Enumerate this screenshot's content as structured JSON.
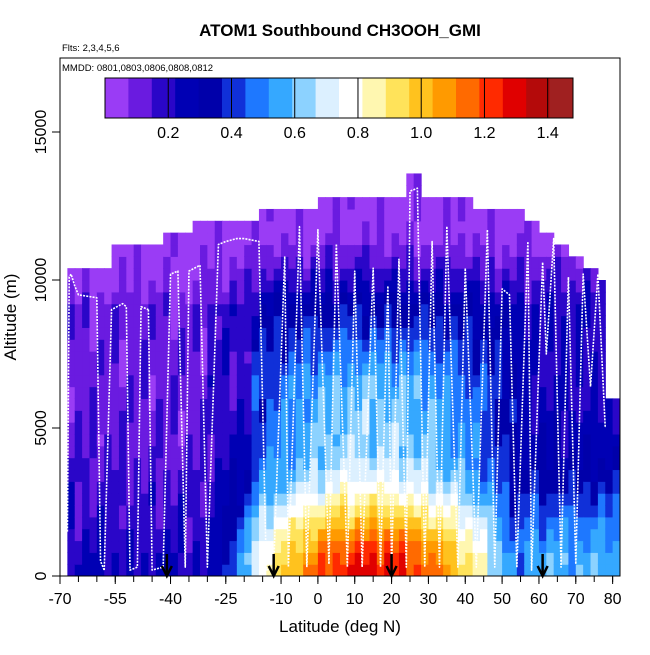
{
  "chart_data": {
    "type": "heatmap",
    "title": "ATOM1 Southbound CH3OOH_GMI",
    "subtitle_flights": "Flts: 2,3,4,5,6",
    "subtitle_dates": "MMDD: 0801,0803,0806,0808,0812",
    "xlabel": "Latitude (deg N)",
    "ylabel": "Altitude (m)",
    "xlim": [
      -70,
      82
    ],
    "ylim": [
      0,
      17500
    ],
    "x_ticks": [
      -70,
      -55,
      -40,
      -25,
      -10,
      0,
      10,
      20,
      30,
      40,
      50,
      60,
      70,
      80
    ],
    "x_tick_labels": [
      "-70",
      "-55",
      "-40",
      "-25",
      "-10",
      "0",
      "10",
      "20",
      "30",
      "40",
      "50",
      "60",
      "70",
      "80"
    ],
    "y_ticks": [
      0,
      5000,
      10000,
      15000
    ],
    "y_tick_labels": [
      "0",
      "5000",
      "10000",
      "15000"
    ],
    "colorbar": {
      "range": [
        0.0,
        1.48
      ],
      "ticks": [
        0.2,
        0.4,
        0.6,
        0.8,
        1.0,
        1.2,
        1.4
      ],
      "tick_labels": [
        "0.2",
        "0.4",
        "0.6",
        "0.8",
        "1.0",
        "1.2",
        "1.4"
      ],
      "colors": [
        "#9A3CF5",
        "#6A1BE0",
        "#2A06C8",
        "#0000B4",
        "#0000AA",
        "#1030D8",
        "#1E78FF",
        "#35A8FF",
        "#8CD2FF",
        "#DCF0FF",
        "#FFFFFF",
        "#FFF7B0",
        "#FFE35A",
        "#FFC21E",
        "#FF9A00",
        "#FF6A00",
        "#FF2A00",
        "#E00000",
        "#B40A0A",
        "#A02020"
      ]
    },
    "arrows_lat": [
      -41,
      -12,
      20,
      61
    ],
    "ceiling_profile": [
      {
        "lat": -67,
        "top": 10400
      },
      {
        "lat": -60,
        "top": 10400
      },
      {
        "lat": -56,
        "top": 10900
      },
      {
        "lat": -50,
        "top": 11200
      },
      {
        "lat": -42,
        "top": 11500
      },
      {
        "lat": -34,
        "top": 11900
      },
      {
        "lat": -26,
        "top": 11900
      },
      {
        "lat": -16,
        "top": 12300
      },
      {
        "lat": -8,
        "top": 12300
      },
      {
        "lat": 0,
        "top": 12800
      },
      {
        "lat": 6,
        "top": 12800
      },
      {
        "lat": 16,
        "top": 12800
      },
      {
        "lat": 22,
        "top": 12800
      },
      {
        "lat": 24,
        "top": 13400
      },
      {
        "lat": 28,
        "top": 12800
      },
      {
        "lat": 34,
        "top": 12800
      },
      {
        "lat": 42,
        "top": 12300
      },
      {
        "lat": 50,
        "top": 12300
      },
      {
        "lat": 56,
        "top": 11900
      },
      {
        "lat": 60,
        "top": 11500
      },
      {
        "lat": 64,
        "top": 11100
      },
      {
        "lat": 68,
        "top": 10700
      },
      {
        "lat": 72,
        "top": 10400
      },
      {
        "lat": 76,
        "top": 10000
      },
      {
        "lat": 78,
        "top": 6000
      },
      {
        "lat": 81,
        "top": 6000
      }
    ],
    "flight_profiles": [
      {
        "lats": [
          -68,
          -67.5,
          -67,
          -66,
          -65,
          -60,
          -59,
          -58
        ],
        "alts": [
          1500,
          10100,
          10200,
          9800,
          9500,
          9400,
          500,
          200
        ]
      },
      {
        "lats": [
          -58,
          -56,
          -53,
          -52,
          -51,
          -49,
          -48,
          -46
        ],
        "alts": [
          200,
          9000,
          9200,
          9100,
          200,
          300,
          9100,
          9000
        ]
      },
      {
        "lats": [
          -46,
          -45,
          -42,
          -40,
          -38,
          -36,
          -35,
          -32
        ],
        "alts": [
          9000,
          200,
          300,
          10200,
          10300,
          300,
          10300,
          10500
        ]
      },
      {
        "lats": [
          -32,
          -30,
          -27,
          -25,
          -22,
          -20,
          -16,
          -14
        ],
        "alts": [
          10500,
          300,
          11200,
          11300,
          11400,
          11400,
          11300,
          200
        ]
      },
      {
        "lats": [
          -14,
          -12,
          -9,
          -8,
          -5,
          -3,
          0,
          3,
          5
        ],
        "alts": [
          200,
          300,
          10800,
          300,
          11800,
          300,
          11700,
          400,
          11200
        ]
      },
      {
        "lats": [
          5,
          8,
          10,
          12,
          15,
          17,
          19,
          20
        ],
        "alts": [
          11200,
          300,
          10300,
          300,
          10400,
          300,
          9800,
          200
        ]
      },
      {
        "lats": [
          20,
          22,
          24,
          25,
          27,
          29,
          31,
          33,
          35
        ],
        "alts": [
          200,
          10700,
          300,
          13000,
          13100,
          300,
          11300,
          300,
          11800
        ]
      },
      {
        "lats": [
          35,
          38,
          40,
          43,
          46,
          48,
          50,
          52,
          54
        ],
        "alts": [
          11800,
          300,
          10400,
          300,
          11700,
          300,
          9700,
          9500,
          300
        ]
      },
      {
        "lats": [
          54,
          57,
          58,
          60,
          61,
          62,
          64,
          66,
          68,
          70,
          72,
          74,
          76,
          78
        ],
        "alts": [
          300,
          11300,
          200,
          7200,
          10600,
          7500,
          11400,
          300,
          10100,
          400,
          10200,
          6400,
          10200,
          5000
        ]
      }
    ]
  }
}
